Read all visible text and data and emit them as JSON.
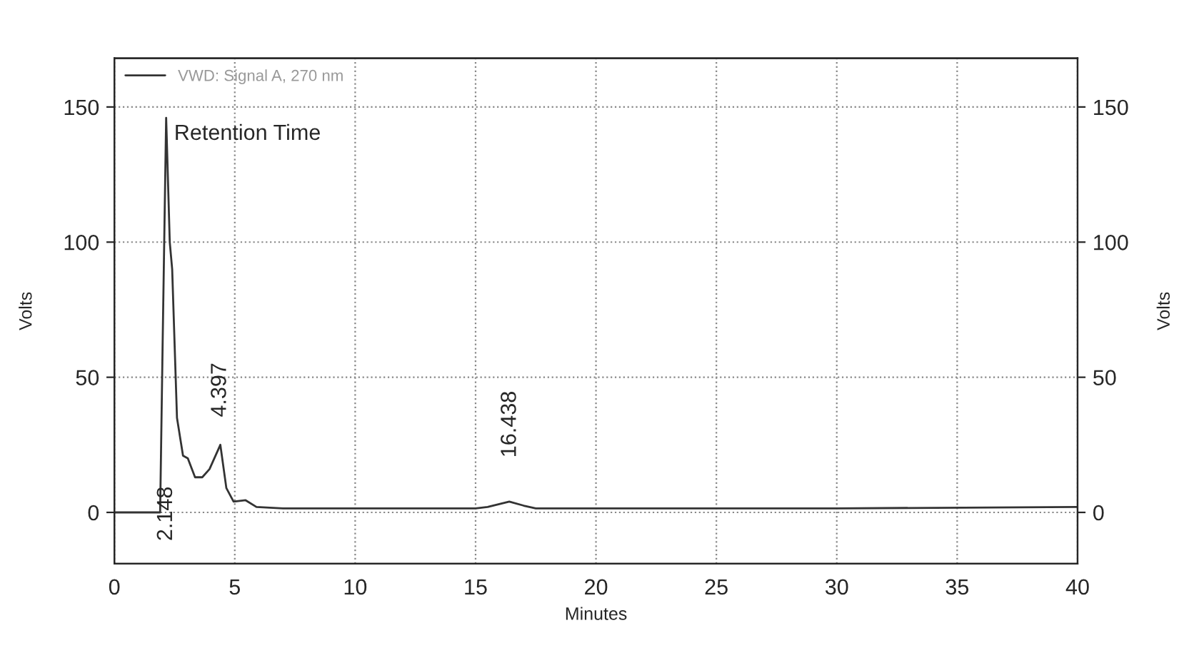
{
  "chart_data": {
    "type": "line",
    "xlabel": "Minutes",
    "ylabel": "Volts",
    "y2label": "Volts",
    "x": [
      0,
      1.9,
      2.0,
      2.15,
      2.3,
      2.4,
      2.6,
      2.85,
      3.05,
      3.35,
      3.65,
      3.95,
      4.4,
      4.65,
      4.95,
      5.45,
      5.9,
      7,
      10,
      15,
      15.5,
      16.4,
      17,
      17.5,
      20,
      30,
      40
    ],
    "series": [
      {
        "name": "VWD: Signal A, 270 nm",
        "color": "#333333",
        "values": [
          0,
          0,
          60,
          146,
          100,
          90,
          35,
          21,
          20,
          13,
          13,
          16,
          25,
          9,
          4,
          4.5,
          2,
          1.5,
          1.5,
          1.5,
          2,
          4,
          2.5,
          1.5,
          1.5,
          1.5,
          2
        ]
      }
    ],
    "annotations": [
      "Retention Time",
      "2.148",
      "4.397",
      "16.438"
    ],
    "xlim": [
      0,
      40
    ],
    "xticks": [
      0,
      5,
      10,
      15,
      20,
      25,
      30,
      35,
      40
    ],
    "ylim": [
      -19,
      168
    ],
    "yticks": [
      0,
      50,
      100,
      150
    ],
    "y2lim": [
      -19,
      168
    ],
    "y2ticks": [
      0,
      50,
      100,
      150
    ],
    "grid": true,
    "legend": "top left",
    "marker": "none",
    "line_style": "solid"
  }
}
